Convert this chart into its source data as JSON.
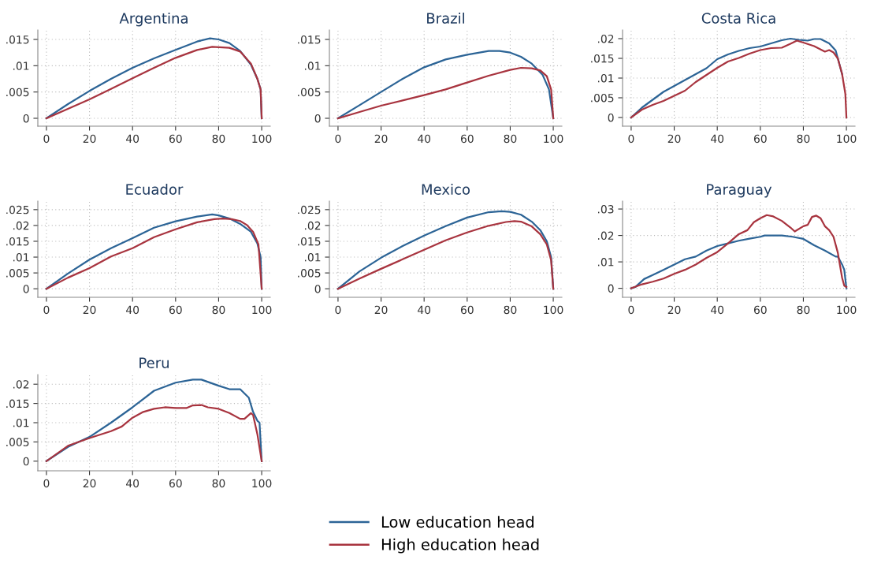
{
  "chart_data": [
    {
      "type": "line",
      "title": "Argentina",
      "xlim": [
        -4,
        104
      ],
      "xticks": [
        0,
        20,
        40,
        60,
        80,
        100
      ],
      "ylim": [
        -0.0015,
        0.0168
      ],
      "yticks": [
        0,
        {
          "value": 0.005,
          "label": ".005"
        },
        {
          "value": 0.01,
          "label": ".01"
        },
        {
          "value": 0.015,
          "label": ".015"
        }
      ],
      "grid": true,
      "legend": "bottom",
      "series": [
        {
          "name": "Low education head",
          "color": "#2c6496",
          "x": [
            0,
            10,
            20,
            30,
            40,
            50,
            60,
            70,
            76,
            80,
            85,
            90,
            95,
            98,
            99.5,
            100
          ],
          "values": [
            0,
            0.0027,
            0.0052,
            0.0075,
            0.0096,
            0.0114,
            0.013,
            0.0146,
            0.0152,
            0.015,
            0.0143,
            0.0128,
            0.0102,
            0.0075,
            0.0055,
            0
          ]
        },
        {
          "name": "High education head",
          "color": "#a8343f",
          "x": [
            0,
            10,
            20,
            30,
            40,
            50,
            60,
            70,
            77,
            85,
            90,
            95,
            98,
            99.5,
            100
          ],
          "values": [
            0,
            0.0018,
            0.0036,
            0.0056,
            0.0076,
            0.0096,
            0.0115,
            0.013,
            0.0136,
            0.0134,
            0.0127,
            0.0104,
            0.0075,
            0.0055,
            0
          ]
        }
      ]
    },
    {
      "type": "line",
      "title": "Brazil",
      "xlim": [
        -4,
        104
      ],
      "xticks": [
        0,
        20,
        40,
        60,
        80,
        100
      ],
      "ylim": [
        -0.0015,
        0.0168
      ],
      "yticks": [
        0,
        {
          "value": 0.005,
          "label": ".005"
        },
        {
          "value": 0.01,
          "label": ".01"
        },
        {
          "value": 0.015,
          "label": ".015"
        }
      ],
      "grid": true,
      "series": [
        {
          "name": "Low education head",
          "color": "#2c6496",
          "x": [
            0,
            10,
            20,
            30,
            40,
            50,
            60,
            70,
            75,
            80,
            85,
            90,
            95,
            98,
            100
          ],
          "values": [
            0,
            0.0025,
            0.005,
            0.0075,
            0.0097,
            0.0112,
            0.0121,
            0.0128,
            0.0128,
            0.0125,
            0.0117,
            0.0104,
            0.0083,
            0.0055,
            0
          ]
        },
        {
          "name": "High education head",
          "color": "#a8343f",
          "x": [
            0,
            10,
            20,
            30,
            40,
            50,
            60,
            70,
            80,
            85,
            90,
            94,
            97,
            99,
            100
          ],
          "values": [
            0,
            0.0012,
            0.0024,
            0.0034,
            0.0044,
            0.0055,
            0.0068,
            0.0081,
            0.0092,
            0.0096,
            0.0095,
            0.0091,
            0.008,
            0.0055,
            0
          ]
        }
      ]
    },
    {
      "type": "line",
      "title": "Costa Rica",
      "xlim": [
        -4,
        104
      ],
      "xticks": [
        0,
        20,
        40,
        60,
        80,
        100
      ],
      "ylim": [
        -0.0022,
        0.0222
      ],
      "yticks": [
        0,
        {
          "value": 0.005,
          "label": ".005"
        },
        {
          "value": 0.01,
          "label": ".01"
        },
        {
          "value": 0.015,
          "label": ".015"
        },
        {
          "value": 0.02,
          "label": ".02"
        }
      ],
      "grid": true,
      "series": [
        {
          "name": "Low education head",
          "color": "#2c6496",
          "x": [
            0,
            5,
            10,
            15,
            20,
            25,
            30,
            35,
            40,
            45,
            50,
            55,
            60,
            65,
            70,
            74,
            78,
            82,
            85,
            88,
            92,
            95,
            98
          ],
          "values": [
            0,
            0.0025,
            0.0045,
            0.0065,
            0.008,
            0.0095,
            0.011,
            0.0125,
            0.0148,
            0.016,
            0.0169,
            0.0176,
            0.018,
            0.0188,
            0.0196,
            0.02,
            0.0197,
            0.0195,
            0.0199,
            0.0199,
            0.0188,
            0.017,
            0.011
          ]
        },
        {
          "name": "High education head",
          "color": "#a8343f",
          "x": [
            0,
            5,
            10,
            15,
            20,
            25,
            30,
            35,
            40,
            45,
            50,
            55,
            60,
            65,
            70,
            74,
            77,
            80,
            85,
            90,
            92,
            94,
            96,
            98,
            99.5,
            100
          ],
          "values": [
            0,
            0.002,
            0.0032,
            0.0042,
            0.0055,
            0.0068,
            0.009,
            0.0108,
            0.0126,
            0.0142,
            0.0151,
            0.0162,
            0.0171,
            0.0176,
            0.0177,
            0.0187,
            0.0195,
            0.019,
            0.0181,
            0.0167,
            0.0171,
            0.0165,
            0.015,
            0.011,
            0.006,
            0
          ]
        }
      ]
    },
    {
      "type": "line",
      "title": "Ecuador",
      "xlim": [
        -4,
        104
      ],
      "xticks": [
        0,
        20,
        40,
        60,
        80,
        100
      ],
      "ylim": [
        -0.0027,
        0.0277
      ],
      "yticks": [
        0,
        {
          "value": 0.005,
          "label": ".005"
        },
        {
          "value": 0.01,
          "label": ".01"
        },
        {
          "value": 0.015,
          "label": ".015"
        },
        {
          "value": 0.02,
          "label": ".02"
        },
        {
          "value": 0.025,
          "label": ".025"
        }
      ],
      "grid": true,
      "series": [
        {
          "name": "Low education head",
          "color": "#2c6496",
          "x": [
            0,
            10,
            20,
            30,
            40,
            50,
            60,
            70,
            77,
            80,
            85,
            90,
            95,
            98,
            99.5,
            100
          ],
          "values": [
            0,
            0.0048,
            0.0092,
            0.0128,
            0.016,
            0.0193,
            0.0213,
            0.0228,
            0.0235,
            0.0232,
            0.0222,
            0.0205,
            0.018,
            0.0143,
            0.01,
            0
          ]
        },
        {
          "name": "High education head",
          "color": "#a8343f",
          "x": [
            0,
            10,
            20,
            30,
            40,
            50,
            60,
            70,
            78,
            82,
            86,
            90,
            93,
            96,
            98.5,
            100
          ],
          "values": [
            0,
            0.0035,
            0.0065,
            0.0102,
            0.0128,
            0.0163,
            0.0188,
            0.021,
            0.022,
            0.0222,
            0.022,
            0.0214,
            0.0202,
            0.018,
            0.014,
            0
          ]
        }
      ]
    },
    {
      "type": "line",
      "title": "Mexico",
      "xlim": [
        -4,
        104
      ],
      "xticks": [
        0,
        20,
        40,
        60,
        80,
        100
      ],
      "ylim": [
        -0.0027,
        0.0277
      ],
      "yticks": [
        0,
        {
          "value": 0.005,
          "label": ".005"
        },
        {
          "value": 0.01,
          "label": ".01"
        },
        {
          "value": 0.015,
          "label": ".015"
        },
        {
          "value": 0.02,
          "label": ".02"
        },
        {
          "value": 0.025,
          "label": ".025"
        }
      ],
      "grid": true,
      "series": [
        {
          "name": "Low education head",
          "color": "#2c6496",
          "x": [
            0,
            10,
            20,
            30,
            40,
            50,
            60,
            70,
            76,
            80,
            85,
            90,
            94,
            97,
            99,
            100
          ],
          "values": [
            0,
            0.0055,
            0.0098,
            0.0135,
            0.0168,
            0.0198,
            0.0225,
            0.0242,
            0.0245,
            0.0243,
            0.0234,
            0.0212,
            0.0185,
            0.015,
            0.01,
            0
          ]
        },
        {
          "name": "High education head",
          "color": "#a8343f",
          "x": [
            0,
            10,
            20,
            30,
            40,
            50,
            60,
            70,
            78,
            82,
            85,
            90,
            94,
            97,
            99,
            100
          ],
          "values": [
            0,
            0.0032,
            0.0063,
            0.0093,
            0.0123,
            0.0153,
            0.0178,
            0.0199,
            0.0211,
            0.0214,
            0.0212,
            0.0197,
            0.0172,
            0.014,
            0.009,
            0
          ]
        }
      ]
    },
    {
      "type": "line",
      "title": "Paraguay",
      "xlim": [
        -4,
        104
      ],
      "xticks": [
        0,
        20,
        40,
        60,
        80,
        100
      ],
      "ylim": [
        -0.0034,
        0.033
      ],
      "yticks": [
        0,
        {
          "value": 0.01,
          "label": ".01"
        },
        {
          "value": 0.02,
          "label": ".02"
        },
        {
          "value": 0.03,
          "label": ".03"
        }
      ],
      "grid": true,
      "series": [
        {
          "name": "Low education head",
          "color": "#2c6496",
          "x": [
            0,
            2,
            6,
            10,
            15,
            20,
            25,
            30,
            35,
            40,
            45,
            50,
            55,
            60,
            62,
            70,
            75,
            80,
            85,
            90,
            95,
            96,
            98,
            99,
            100
          ],
          "values": [
            0,
            0.0005,
            0.0035,
            0.005,
            0.007,
            0.009,
            0.011,
            0.012,
            0.0143,
            0.016,
            0.017,
            0.018,
            0.0188,
            0.0195,
            0.02,
            0.02,
            0.0195,
            0.0187,
            0.0163,
            0.0143,
            0.012,
            0.012,
            0.009,
            0.007,
            0
          ]
        },
        {
          "name": "High education head",
          "color": "#a8343f",
          "x": [
            0,
            5,
            10,
            15,
            20,
            25,
            30,
            35,
            40,
            45,
            50,
            54,
            57,
            60,
            63,
            66,
            70,
            74,
            76,
            80,
            82,
            84,
            86,
            88,
            90,
            92,
            94,
            96,
            98,
            99,
            100
          ],
          "values": [
            0,
            0.0015,
            0.0025,
            0.0037,
            0.0055,
            0.007,
            0.009,
            0.0115,
            0.0137,
            0.017,
            0.0205,
            0.022,
            0.025,
            0.0265,
            0.0277,
            0.0272,
            0.0255,
            0.023,
            0.0215,
            0.0235,
            0.024,
            0.027,
            0.0275,
            0.0265,
            0.0235,
            0.022,
            0.0195,
            0.0135,
            0.004,
            0.001,
            0.0005
          ]
        }
      ]
    },
    {
      "type": "line",
      "title": "Peru",
      "xlim": [
        -4,
        104
      ],
      "xticks": [
        0,
        20,
        40,
        60,
        80,
        100
      ],
      "ylim": [
        -0.0025,
        0.0225
      ],
      "yticks": [
        0,
        {
          "value": 0.005,
          "label": ".005"
        },
        {
          "value": 0.01,
          "label": ".01"
        },
        {
          "value": 0.015,
          "label": ".015"
        },
        {
          "value": 0.02,
          "label": ".02"
        }
      ],
      "grid": true,
      "series": [
        {
          "name": "Low education head",
          "color": "#2c6496",
          "x": [
            0,
            10,
            20,
            30,
            40,
            50,
            60,
            68,
            72,
            80,
            85,
            90,
            94,
            96,
            98,
            99,
            100
          ],
          "values": [
            0,
            0.0037,
            0.0063,
            0.01,
            0.014,
            0.0183,
            0.0204,
            0.0212,
            0.0212,
            0.0196,
            0.0187,
            0.0187,
            0.0165,
            0.0128,
            0.0105,
            0.01,
            0
          ]
        },
        {
          "name": "High education head",
          "color": "#a8343f",
          "x": [
            0,
            10,
            20,
            30,
            35,
            40,
            45,
            50,
            55,
            60,
            65,
            68,
            72,
            75,
            80,
            85,
            90,
            92,
            95,
            96,
            98,
            100
          ],
          "values": [
            0,
            0.004,
            0.006,
            0.0078,
            0.009,
            0.0113,
            0.0128,
            0.0136,
            0.014,
            0.0138,
            0.0138,
            0.0145,
            0.0146,
            0.014,
            0.0136,
            0.0125,
            0.011,
            0.011,
            0.0125,
            0.012,
            0.007,
            0
          ]
        }
      ]
    }
  ]
}
